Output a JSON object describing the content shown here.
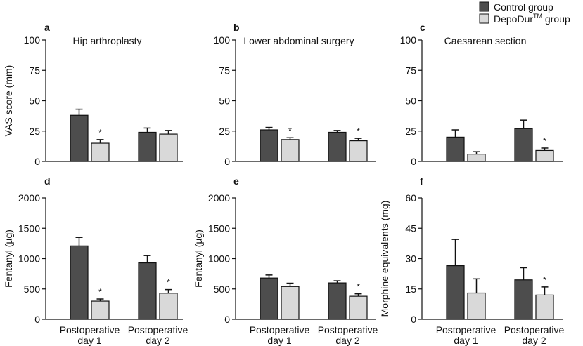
{
  "legend": {
    "control": {
      "label": "Control group",
      "color": "#4d4d4d"
    },
    "depodur": {
      "label": "DepoDur",
      "superscript": "TM",
      "suffix": " group",
      "color": "#d9d9d9"
    }
  },
  "chart_data": [
    {
      "type": "bar",
      "id": "a",
      "letter": "a",
      "title": "Hip arthroplasty",
      "ylabel": "VAS score (mm)",
      "ylim": [
        0,
        100
      ],
      "yticks": [
        0,
        25,
        50,
        75,
        100
      ],
      "categories": [
        [
          "",
          ""
        ],
        [
          "",
          ""
        ]
      ],
      "series": [
        {
          "name": "Control group",
          "values": [
            38,
            24
          ],
          "errors": [
            5,
            3.5
          ]
        },
        {
          "name": "DepoDur group",
          "values": [
            15,
            22.5
          ],
          "errors": [
            3,
            3
          ]
        }
      ],
      "significance": [
        {
          "category": 0,
          "series": 1,
          "label": "*"
        }
      ]
    },
    {
      "type": "bar",
      "id": "b",
      "letter": "b",
      "title": "Lower abdominal surgery",
      "ylabel": "",
      "ylim": [
        0,
        100
      ],
      "yticks": [
        0,
        25,
        50,
        75,
        100
      ],
      "categories": [
        [
          "",
          ""
        ],
        [
          "",
          ""
        ]
      ],
      "series": [
        {
          "name": "Control group",
          "values": [
            26,
            24
          ],
          "errors": [
            2,
            1.5
          ]
        },
        {
          "name": "DepoDur group",
          "values": [
            18,
            17
          ],
          "errors": [
            1.5,
            2
          ]
        }
      ],
      "significance": [
        {
          "category": 0,
          "series": 1,
          "label": "*"
        },
        {
          "category": 1,
          "series": 1,
          "label": "*"
        }
      ]
    },
    {
      "type": "bar",
      "id": "c",
      "letter": "c",
      "title": "Caesarean section",
      "ylabel": "",
      "ylim": [
        0,
        100
      ],
      "yticks": [
        0,
        25,
        50,
        75,
        100
      ],
      "categories": [
        [
          "",
          ""
        ],
        [
          "",
          ""
        ]
      ],
      "series": [
        {
          "name": "Control group",
          "values": [
            20,
            27
          ],
          "errors": [
            6,
            7
          ]
        },
        {
          "name": "DepoDur group",
          "values": [
            6,
            9
          ],
          "errors": [
            2,
            2
          ]
        }
      ],
      "significance": [
        {
          "category": 1,
          "series": 1,
          "label": "*"
        }
      ]
    },
    {
      "type": "bar",
      "id": "d",
      "letter": "d",
      "title": "",
      "ylabel": "Fentanyl (µg)",
      "ylim": [
        0,
        2000
      ],
      "yticks": [
        0,
        500,
        1000,
        1500,
        2000
      ],
      "categories": [
        [
          "Postoperative",
          "day 1"
        ],
        [
          "Postoperative",
          "day 2"
        ]
      ],
      "series": [
        {
          "name": "Control group",
          "values": [
            1210,
            930
          ],
          "errors": [
            140,
            120
          ]
        },
        {
          "name": "DepoDur group",
          "values": [
            300,
            430
          ],
          "errors": [
            35,
            60
          ]
        }
      ],
      "significance": [
        {
          "category": 0,
          "series": 1,
          "label": "*"
        },
        {
          "category": 1,
          "series": 1,
          "label": "*"
        }
      ]
    },
    {
      "type": "bar",
      "id": "e",
      "letter": "e",
      "title": "",
      "ylabel": "Fentanyl (µg)",
      "ylim": [
        0,
        2000
      ],
      "yticks": [
        0,
        500,
        1000,
        1500,
        2000
      ],
      "categories": [
        [
          "Postoperative",
          "day 1"
        ],
        [
          "Postoperative",
          "day 2"
        ]
      ],
      "series": [
        {
          "name": "Control group",
          "values": [
            680,
            600
          ],
          "errors": [
            50,
            35
          ]
        },
        {
          "name": "DepoDur group",
          "values": [
            540,
            380
          ],
          "errors": [
            55,
            40
          ]
        }
      ],
      "significance": [
        {
          "category": 1,
          "series": 1,
          "label": "*"
        }
      ]
    },
    {
      "type": "bar",
      "id": "f",
      "letter": "f",
      "title": "",
      "ylabel": "Morphine equivalents (mg)",
      "ylim": [
        0,
        60
      ],
      "yticks": [
        0,
        15,
        30,
        45,
        60
      ],
      "categories": [
        [
          "Postoperative",
          "day 1"
        ],
        [
          "Postoperative",
          "day 2"
        ]
      ],
      "series": [
        {
          "name": "Control group",
          "values": [
            26.5,
            19.5
          ],
          "errors": [
            13,
            6
          ]
        },
        {
          "name": "DepoDur group",
          "values": [
            13,
            12
          ],
          "errors": [
            7,
            4
          ]
        }
      ],
      "significance": [
        {
          "category": 1,
          "series": 1,
          "label": "*"
        }
      ]
    }
  ]
}
